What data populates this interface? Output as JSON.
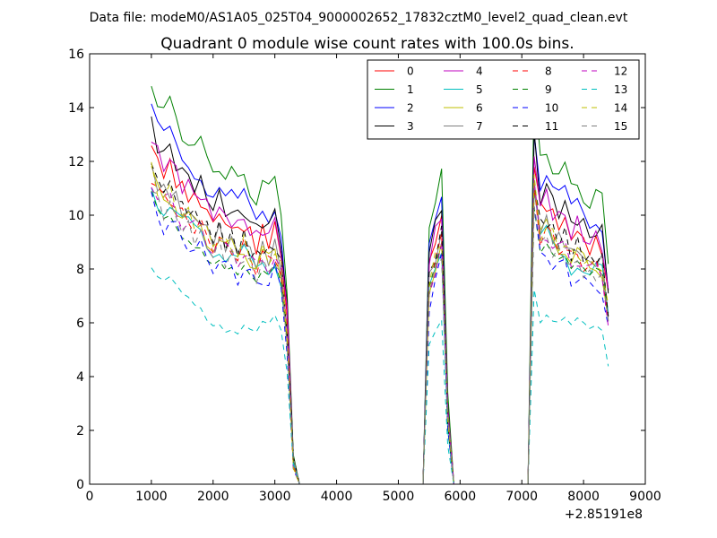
{
  "suptitle": "Data file: modeM0/AS1A05_025T04_9000002652_17832cztM0_level2_quad_clean.evt",
  "chart_data": {
    "type": "line",
    "title": "Quadrant 0 module wise count rates with 100.0s bins.",
    "xlabel": "",
    "ylabel": "",
    "xlim": [
      0,
      9000
    ],
    "ylim": [
      0,
      16
    ],
    "x_offset_label": "+2.85191e8",
    "xticks": [
      0,
      1000,
      2000,
      3000,
      4000,
      5000,
      6000,
      7000,
      8000,
      9000
    ],
    "yticks": [
      0,
      2,
      4,
      6,
      8,
      10,
      12,
      14,
      16
    ],
    "legend_position": "top-right",
    "legend_columns": 4,
    "series": [
      {
        "name": "0",
        "color": "#ff0000",
        "style": "solid",
        "scale": 0.88
      },
      {
        "name": "1",
        "color": "#008000",
        "style": "solid",
        "scale": 1.05
      },
      {
        "name": "2",
        "color": "#0000ff",
        "style": "solid",
        "scale": 0.97
      },
      {
        "name": "3",
        "color": "#000000",
        "style": "solid",
        "scale": 0.93
      },
      {
        "name": "4",
        "color": "#bf00bf",
        "style": "solid",
        "scale": 0.9
      },
      {
        "name": "5",
        "color": "#00bfbf",
        "style": "solid",
        "scale": 0.78
      },
      {
        "name": "6",
        "color": "#bfbf00",
        "style": "solid",
        "scale": 0.8
      },
      {
        "name": "7",
        "color": "#808080",
        "style": "solid",
        "scale": 0.82
      },
      {
        "name": "8",
        "color": "#ff0000",
        "style": "dashed",
        "scale": 0.8
      },
      {
        "name": "9",
        "color": "#008000",
        "style": "dashed",
        "scale": 0.76
      },
      {
        "name": "10",
        "color": "#0000ff",
        "style": "dashed",
        "scale": 0.73
      },
      {
        "name": "11",
        "color": "#000000",
        "style": "dashed",
        "scale": 0.83
      },
      {
        "name": "12",
        "color": "#bf00bf",
        "style": "dashed",
        "scale": 0.79
      },
      {
        "name": "13",
        "color": "#00bfbf",
        "style": "dashed",
        "scale": 0.55
      },
      {
        "name": "14",
        "color": "#bfbf00",
        "style": "dashed",
        "scale": 0.81
      },
      {
        "name": "15",
        "color": "#808080",
        "style": "dashed",
        "scale": 0.77
      }
    ],
    "segments": [
      {
        "x": [
          1000,
          1100,
          1200,
          1300,
          1400,
          1500,
          1600,
          1700,
          1800,
          1900,
          2000,
          2100,
          2200,
          2300,
          2400,
          2500,
          2600,
          2700,
          2800,
          2900,
          3000,
          3100,
          3200,
          3300,
          3400
        ],
        "y": [
          14.4,
          13.6,
          13.2,
          13.4,
          12.9,
          12.4,
          12.3,
          12.0,
          12.0,
          11.4,
          11.2,
          11.4,
          10.9,
          11.0,
          10.6,
          11.0,
          10.5,
          10.1,
          10.6,
          10.3,
          10.8,
          9.8,
          7.0,
          1.0,
          0.0
        ]
      },
      {
        "x": [
          3500,
          3600,
          3700,
          3800,
          3900,
          4000,
          4100,
          4200,
          4300,
          4400,
          4500,
          4600,
          4700,
          4800,
          4900,
          5000,
          5100,
          5200,
          5300,
          5400
        ],
        "y": [
          0,
          0,
          0,
          0,
          0,
          0,
          0,
          0,
          0,
          0,
          0,
          0,
          0,
          0,
          0,
          0,
          0,
          0,
          0,
          0
        ]
      },
      {
        "x": [
          5400,
          5500,
          5600,
          5700,
          5800,
          5900
        ],
        "y": [
          0.0,
          9.2,
          10.3,
          11.3,
          3.0,
          0.0
        ]
      },
      {
        "x": [
          5900,
          6000,
          6100,
          6200,
          6300,
          6400,
          6500,
          6600,
          6700,
          6800,
          6900,
          7000,
          7100
        ],
        "y": [
          0,
          0,
          0,
          0,
          0,
          0,
          0,
          0,
          0,
          0,
          0,
          0,
          0
        ]
      },
      {
        "x": [
          7100,
          7200,
          7300,
          7400,
          7500,
          7600,
          7700,
          7800,
          7900,
          8000,
          8100,
          8200,
          8300,
          8400
        ],
        "y": [
          0.0,
          13.8,
          11.5,
          11.9,
          11.3,
          11.0,
          11.1,
          10.4,
          10.7,
          10.3,
          9.9,
          10.2,
          10.0,
          7.8
        ]
      }
    ]
  }
}
